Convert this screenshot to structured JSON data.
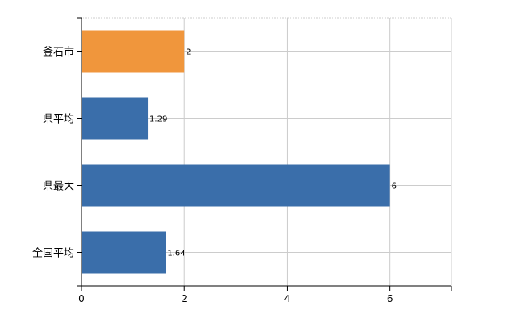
{
  "chart_data": {
    "type": "bar",
    "orientation": "horizontal",
    "categories": [
      "釜石市",
      "県平均",
      "県最大",
      "全国平均"
    ],
    "values": [
      2,
      1.29,
      6,
      1.64
    ],
    "value_labels": [
      "2",
      "1.29",
      "6",
      "1.64"
    ],
    "bar_colors": [
      "#f0963c",
      "#3a6eaa",
      "#3a6eaa",
      "#3a6eaa"
    ],
    "xlim": [
      0,
      7.2
    ],
    "xticks": [
      0,
      2,
      4,
      6
    ],
    "xtick_labels": [
      "0",
      "2",
      "4",
      "6"
    ],
    "grid": true,
    "title": "",
    "xlabel": "",
    "ylabel": ""
  }
}
